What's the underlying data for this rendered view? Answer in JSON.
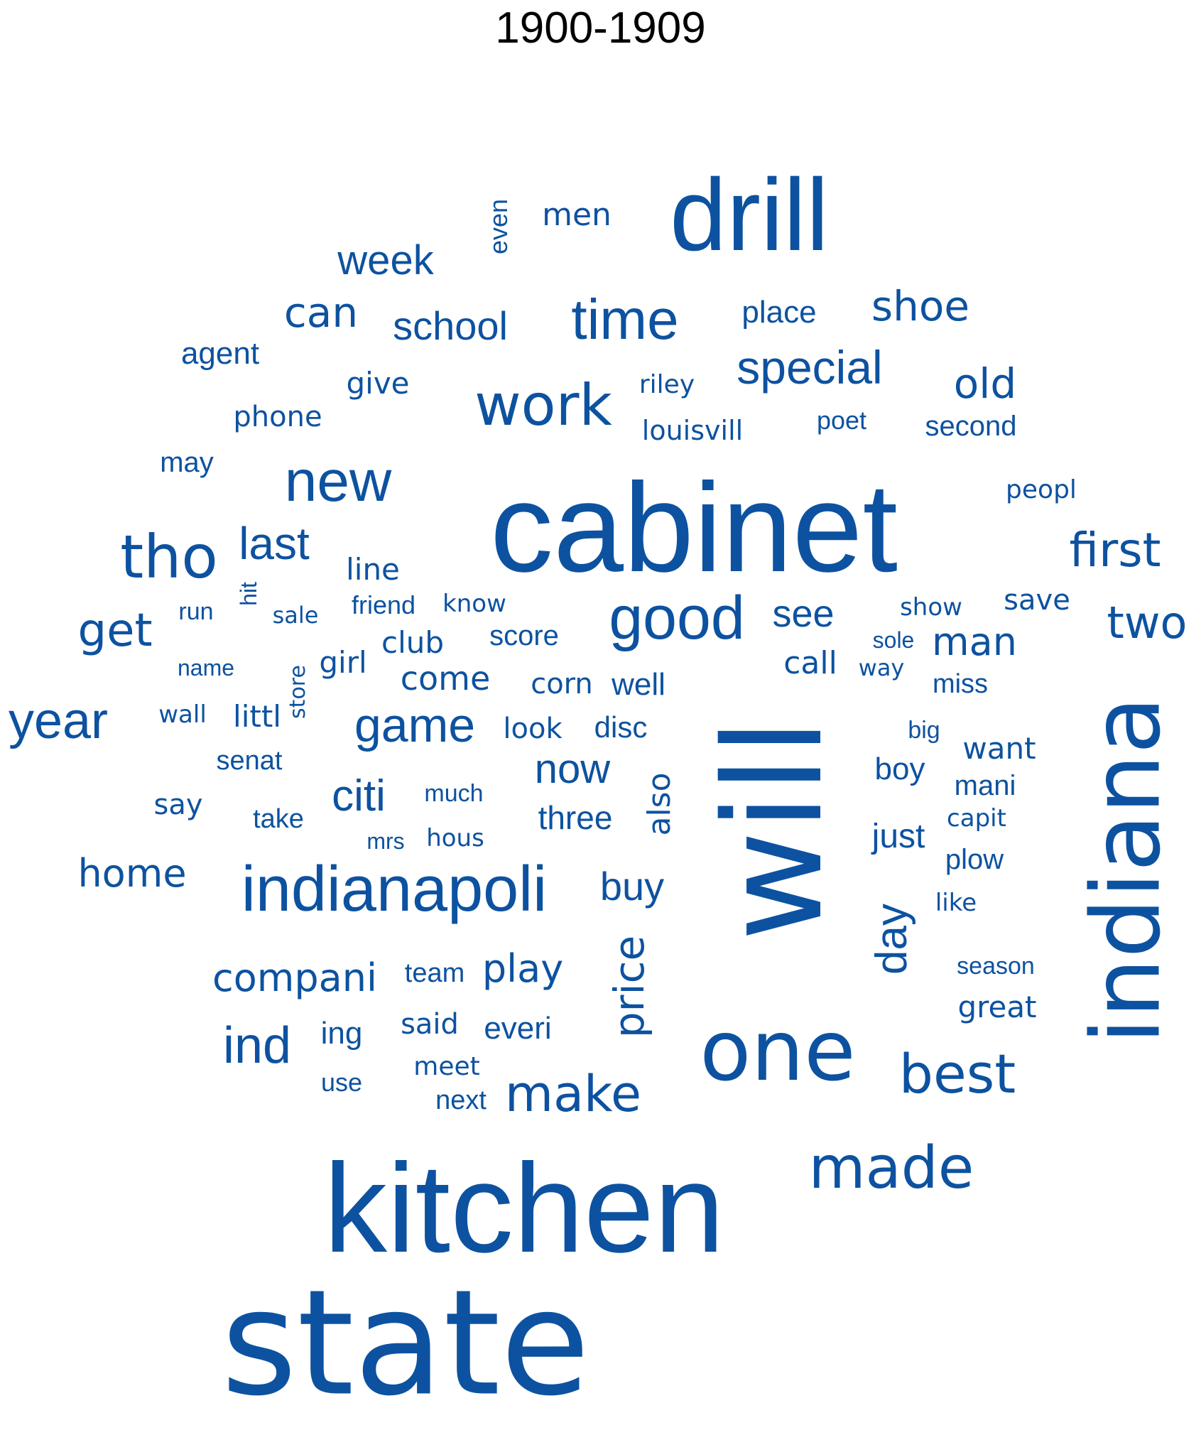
{
  "title": "1900-1909",
  "word_color": "#0d52a0",
  "words": [
    {
      "text": "state"
    },
    {
      "text": "kitchen"
    },
    {
      "text": "will"
    },
    {
      "text": "cabinet"
    },
    {
      "text": "indiana"
    },
    {
      "text": "drill"
    },
    {
      "text": "one"
    },
    {
      "text": "indianapoli"
    },
    {
      "text": "made"
    },
    {
      "text": "good"
    },
    {
      "text": "tho"
    },
    {
      "text": "new"
    },
    {
      "text": "work"
    },
    {
      "text": "time"
    },
    {
      "text": "best"
    },
    {
      "text": "year"
    },
    {
      "text": "make"
    },
    {
      "text": "special"
    },
    {
      "text": "first"
    },
    {
      "text": "game"
    },
    {
      "text": "two"
    },
    {
      "text": "ind"
    },
    {
      "text": "get"
    },
    {
      "text": "last"
    },
    {
      "text": "shoe"
    },
    {
      "text": "week"
    },
    {
      "text": "compani"
    },
    {
      "text": "school"
    },
    {
      "text": "can"
    },
    {
      "text": "day"
    },
    {
      "text": "old"
    },
    {
      "text": "citi"
    },
    {
      "text": "price"
    },
    {
      "text": "now"
    },
    {
      "text": "home"
    },
    {
      "text": "buy"
    },
    {
      "text": "man"
    },
    {
      "text": "see"
    },
    {
      "text": "play"
    },
    {
      "text": "three"
    },
    {
      "text": "come"
    },
    {
      "text": "just"
    },
    {
      "text": "also"
    },
    {
      "text": "place"
    },
    {
      "text": "men"
    },
    {
      "text": "agent"
    },
    {
      "text": "give"
    },
    {
      "text": "everi"
    },
    {
      "text": "call"
    },
    {
      "text": "plow"
    },
    {
      "text": "line"
    },
    {
      "text": "boy"
    },
    {
      "text": "great"
    },
    {
      "text": "well"
    },
    {
      "text": "club"
    },
    {
      "text": "score"
    },
    {
      "text": "girl"
    },
    {
      "text": "second"
    },
    {
      "text": "phone"
    },
    {
      "text": "team"
    },
    {
      "text": "want"
    },
    {
      "text": "ing"
    },
    {
      "text": "corn"
    },
    {
      "text": "disc"
    },
    {
      "text": "save"
    },
    {
      "text": "mani"
    },
    {
      "text": "louisvill"
    },
    {
      "text": "may"
    },
    {
      "text": "said"
    },
    {
      "text": "miss"
    },
    {
      "text": "look"
    },
    {
      "text": "senat"
    },
    {
      "text": "say"
    },
    {
      "text": "take"
    },
    {
      "text": "littl"
    },
    {
      "text": "friend"
    },
    {
      "text": "riley"
    },
    {
      "text": "even"
    },
    {
      "text": "peopl"
    },
    {
      "text": "poet"
    },
    {
      "text": "show"
    },
    {
      "text": "use"
    },
    {
      "text": "know"
    },
    {
      "text": "next"
    },
    {
      "text": "meet"
    },
    {
      "text": "much"
    },
    {
      "text": "hous"
    },
    {
      "text": "season"
    },
    {
      "text": "capit"
    },
    {
      "text": "big"
    },
    {
      "text": "like"
    },
    {
      "text": "run"
    },
    {
      "text": "sale"
    },
    {
      "text": "name"
    },
    {
      "text": "wall"
    },
    {
      "text": "sole"
    },
    {
      "text": "way"
    },
    {
      "text": "hit"
    },
    {
      "text": "store"
    },
    {
      "text": "mrs"
    }
  ]
}
